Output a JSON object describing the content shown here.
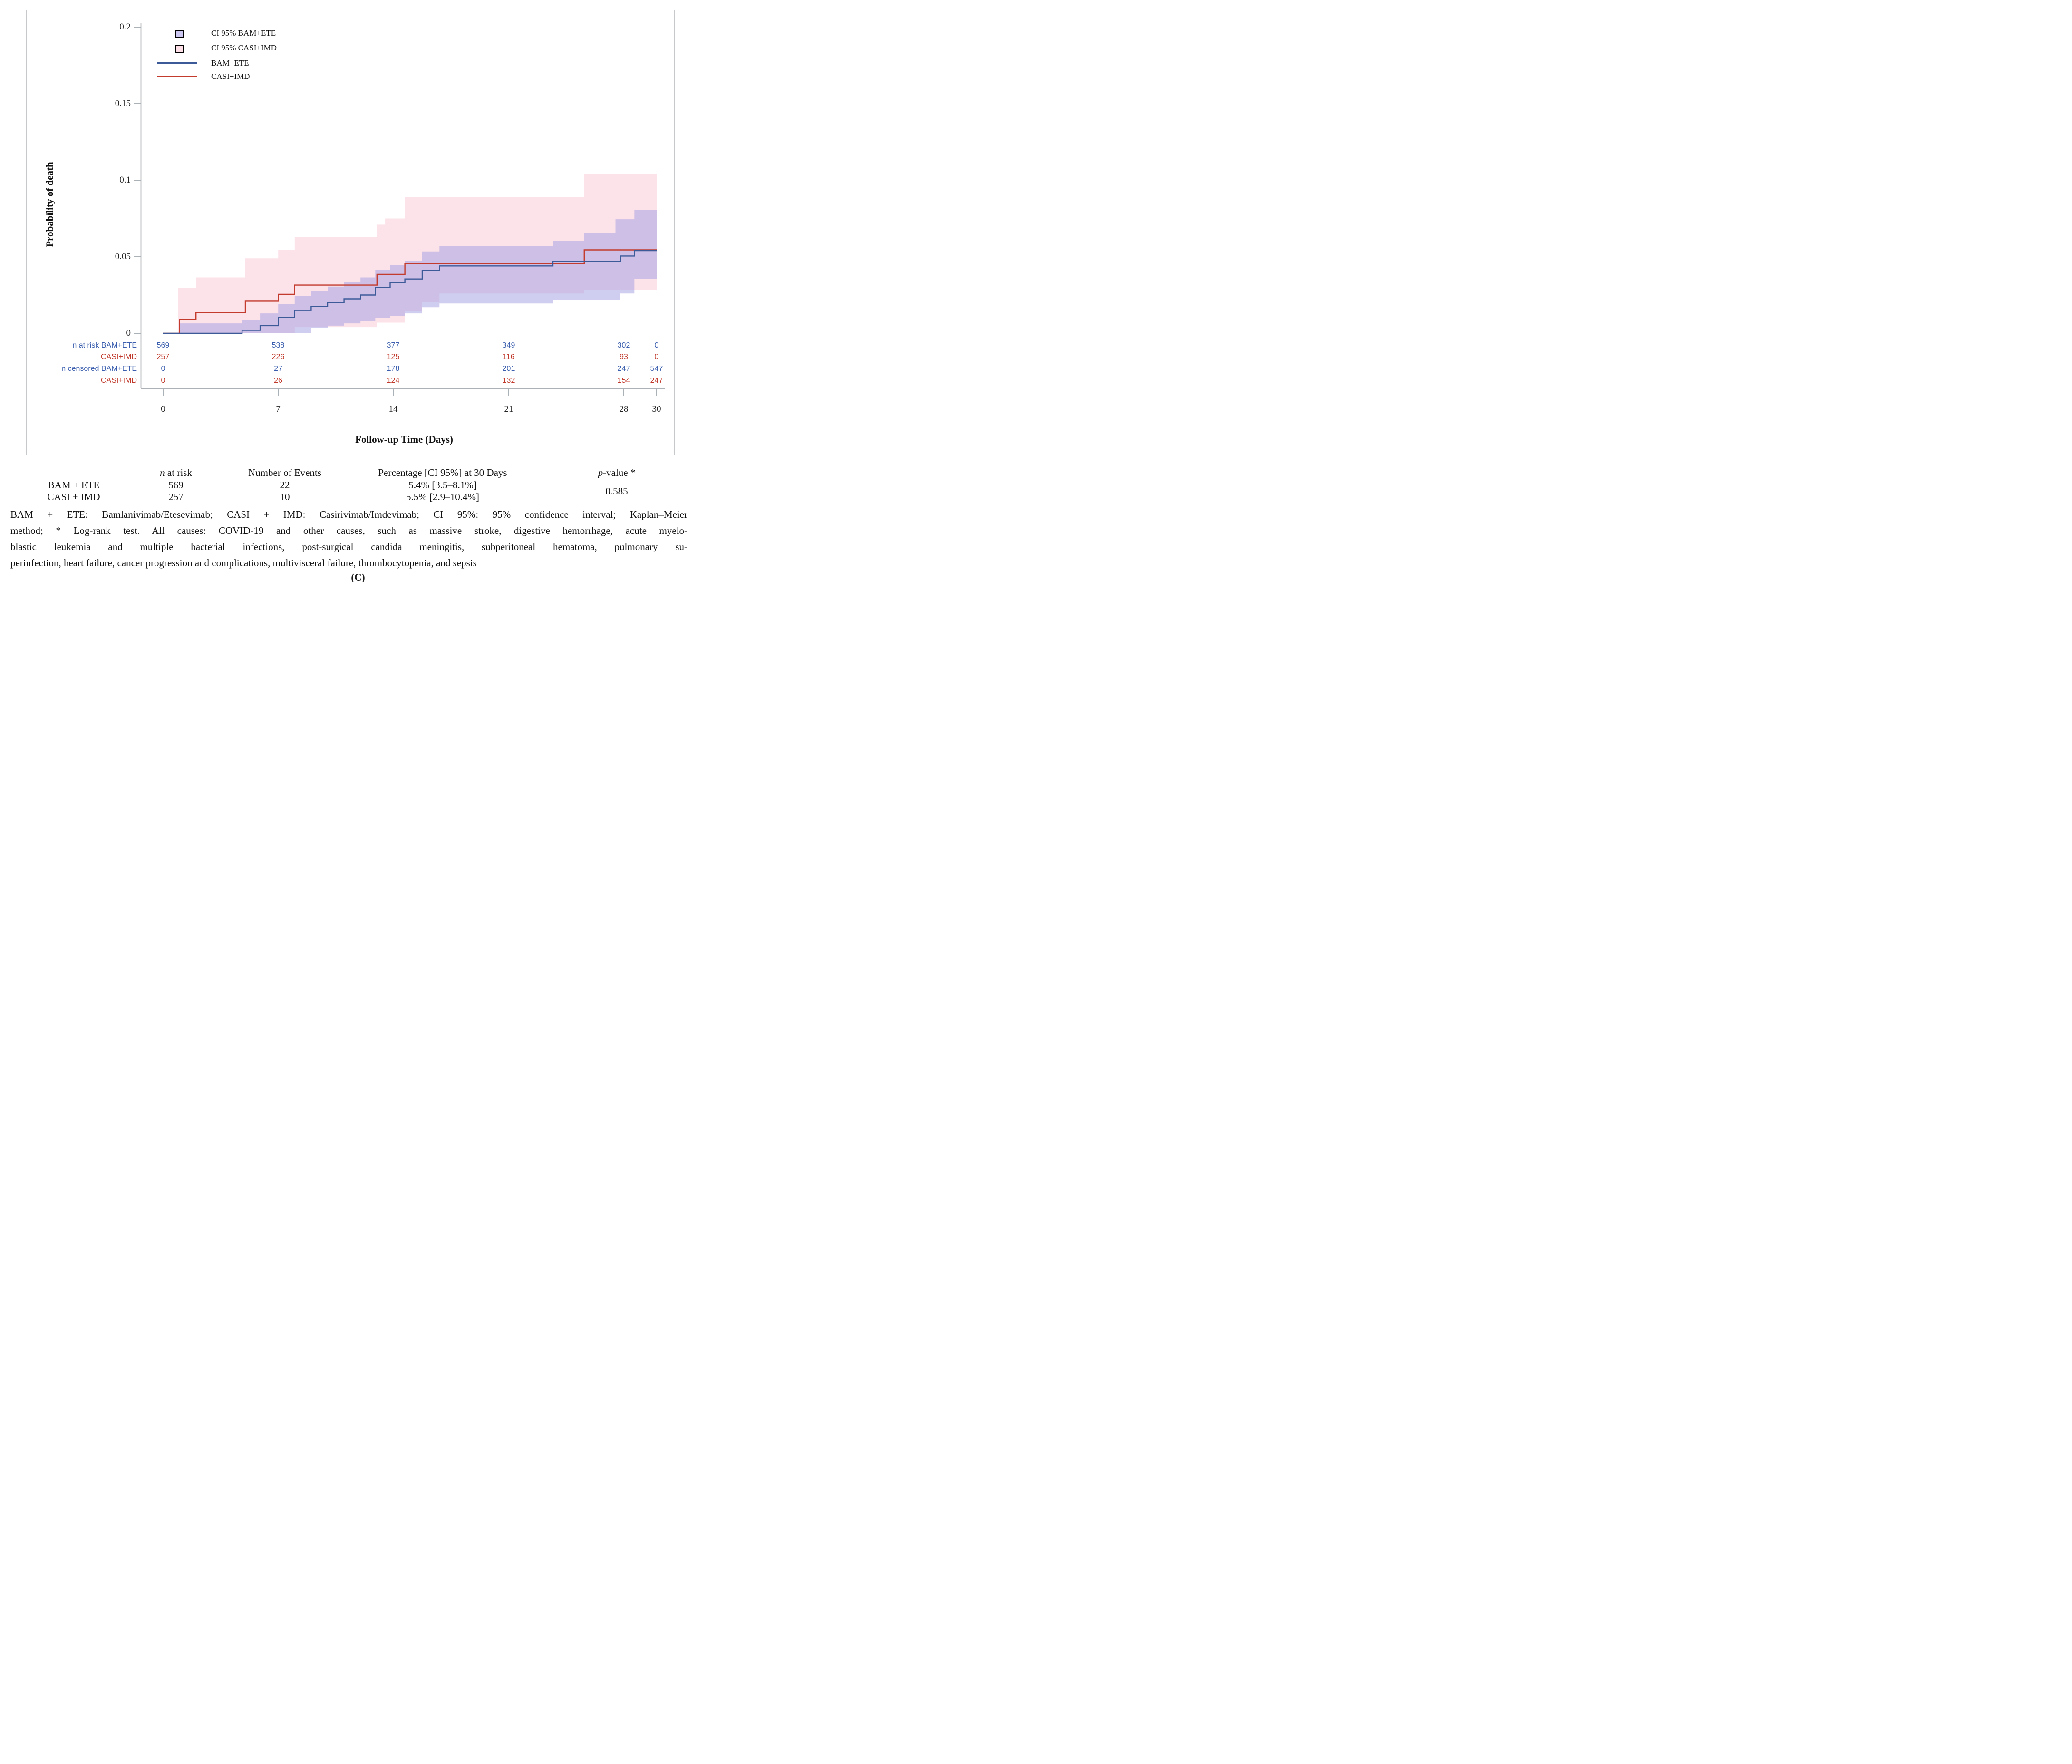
{
  "chart_data": {
    "type": "line",
    "subtype": "kaplan-meier-step-with-confidence-bands",
    "title": "",
    "xlabel": "Follow-up Time (Days)",
    "ylabel": "Probability of death",
    "xlim": [
      0,
      30
    ],
    "ylim": [
      0,
      0.2
    ],
    "grid": false,
    "legend_position": "top-left",
    "x_ticks": [
      {
        "v": 0,
        "label": "0"
      },
      {
        "v": 7,
        "label": "7"
      },
      {
        "v": 14,
        "label": "14"
      },
      {
        "v": 21,
        "label": "21"
      },
      {
        "v": 28,
        "label": "28"
      },
      {
        "v": 30,
        "label": "30"
      }
    ],
    "y_ticks": [
      {
        "v": 0.2,
        "label": "0.2"
      },
      {
        "v": 0.15,
        "label": "0.15"
      },
      {
        "v": 0.1,
        "label": "0.1"
      },
      {
        "v": 0.05,
        "label": "0.05"
      },
      {
        "v": 0,
        "label": "0"
      }
    ],
    "legend": [
      {
        "type": "box",
        "color": "#cbc7f0",
        "label": "CI 95% BAM+ETE"
      },
      {
        "type": "box",
        "color": "#fcdfe7",
        "label": "CI 95% CASI+IMD"
      },
      {
        "type": "line",
        "color": "#3d5a98",
        "label": "BAM+ETE"
      },
      {
        "type": "line",
        "color": "#c23b2c",
        "label": "CASI+IMD"
      }
    ],
    "series": [
      {
        "name": "CASI+IMD",
        "color": "#c23b2c",
        "points": [
          [
            0,
            0
          ],
          [
            1,
            0.009
          ],
          [
            2,
            0.0135
          ],
          [
            5,
            0.021
          ],
          [
            7,
            0.0255
          ],
          [
            8,
            0.0315
          ],
          [
            13,
            0.0385
          ],
          [
            14.7,
            0.0455
          ],
          [
            25.6,
            0.0545
          ],
          [
            30,
            0.0545
          ]
        ]
      },
      {
        "name": "BAM+ETE",
        "color": "#3d5a98",
        "points": [
          [
            0,
            0
          ],
          [
            4.8,
            0.002
          ],
          [
            5.9,
            0.005
          ],
          [
            7,
            0.0105
          ],
          [
            8,
            0.015
          ],
          [
            9,
            0.0175
          ],
          [
            10,
            0.02
          ],
          [
            11,
            0.0225
          ],
          [
            12,
            0.025
          ],
          [
            12.9,
            0.03
          ],
          [
            13.8,
            0.033
          ],
          [
            14.7,
            0.0355
          ],
          [
            15.75,
            0.041
          ],
          [
            16.8,
            0.044
          ],
          [
            23.7,
            0.047
          ],
          [
            27.8,
            0.0505
          ],
          [
            28.65,
            0.054
          ],
          [
            30,
            0.054
          ]
        ]
      }
    ],
    "bands": [
      {
        "name": "CI 95% CASI+IMD",
        "fill": "rgba(249,199,213,0.5)",
        "upper": [
          [
            0.9,
            0.0295
          ],
          [
            2,
            0.0365
          ],
          [
            5,
            0.049
          ],
          [
            7,
            0.0545
          ],
          [
            8,
            0.063
          ],
          [
            13,
            0.071
          ],
          [
            13.5,
            0.075
          ],
          [
            14.7,
            0.089
          ],
          [
            25.6,
            0.104
          ],
          [
            30,
            0.104
          ]
        ],
        "lower": [
          [
            0.9,
            0
          ],
          [
            7.5,
            0
          ],
          [
            8,
            0.004
          ],
          [
            13,
            0.007
          ],
          [
            14.7,
            0.0145
          ],
          [
            15.75,
            0.0205
          ],
          [
            16.8,
            0.026
          ],
          [
            25.6,
            0.0285
          ],
          [
            30,
            0.0285
          ]
        ]
      },
      {
        "name": "CI 95% BAM+ETE",
        "fill": "rgba(160,156,226,0.5)",
        "upper": [
          [
            1,
            0.0065
          ],
          [
            4.8,
            0.009
          ],
          [
            5.9,
            0.013
          ],
          [
            7,
            0.019
          ],
          [
            8,
            0.0245
          ],
          [
            9,
            0.0275
          ],
          [
            10,
            0.0305
          ],
          [
            11,
            0.0335
          ],
          [
            12,
            0.0365
          ],
          [
            12.9,
            0.0415
          ],
          [
            13.8,
            0.0445
          ],
          [
            14.7,
            0.0475
          ],
          [
            15.75,
            0.0535
          ],
          [
            16.8,
            0.057
          ],
          [
            23.7,
            0.0605
          ],
          [
            25.6,
            0.0655
          ],
          [
            27.5,
            0.0745
          ],
          [
            28.65,
            0.0805
          ],
          [
            30,
            0.0805
          ]
        ],
        "lower": [
          [
            1,
            0
          ],
          [
            8.5,
            0
          ],
          [
            9,
            0.0035
          ],
          [
            10,
            0.005
          ],
          [
            11,
            0.0065
          ],
          [
            12,
            0.008
          ],
          [
            12.9,
            0.01
          ],
          [
            13.8,
            0.0115
          ],
          [
            14.7,
            0.013
          ],
          [
            15.75,
            0.017
          ],
          [
            16.8,
            0.0195
          ],
          [
            23.7,
            0.022
          ],
          [
            27.8,
            0.026
          ],
          [
            28.65,
            0.0355
          ],
          [
            30,
            0.0355
          ]
        ]
      }
    ],
    "risk_table": {
      "columns_days": [
        0,
        7,
        14,
        21,
        28,
        30
      ],
      "rows": [
        {
          "label": "n at risk BAM+ETE",
          "color": "#3b5fae",
          "values": [
            "569",
            "538",
            "377",
            "349",
            "302",
            "0"
          ]
        },
        {
          "label": "CASI+IMD",
          "color": "#c0392b",
          "values": [
            "257",
            "226",
            "125",
            "116",
            "93",
            "0"
          ]
        },
        {
          "label": "n censored BAM+ETE",
          "color": "#3b5fae",
          "values": [
            "0",
            "27",
            "178",
            "201",
            "247",
            "547"
          ]
        },
        {
          "label": "CASI+IMD",
          "color": "#c0392b",
          "values": [
            "0",
            "26",
            "124",
            "132",
            "154",
            "247"
          ]
        }
      ]
    }
  },
  "summary_table": {
    "headers": {
      "col1": {
        "italic": "n",
        "rest": " at risk"
      },
      "col2": "Number of Events",
      "col3": "Percentage [CI 95%] at 30 Days",
      "col4": {
        "italic": "p",
        "rest": "-value *"
      }
    },
    "rows": [
      {
        "label": "BAM + ETE",
        "n_at_risk": "569",
        "events": "22",
        "percentage": "5.4% [3.5–8.1%]"
      },
      {
        "label": "CASI + IMD",
        "n_at_risk": "257",
        "events": "10",
        "percentage": "5.5% [2.9–10.4%]"
      }
    ],
    "p_value": "0.585"
  },
  "footnote_lines": [
    "BAM + ETE: Bamlanivimab/Etesevimab; CASI + IMD: Casirivimab/Imdevimab; CI 95%: 95% confidence interval; Kaplan–Meier",
    "method; * Log-rank test. All causes: COVID-19 and other causes, such as massive stroke, digestive hemorrhage, acute myelo-",
    "blastic leukemia and multiple bacterial infections, post-surgical candida meningitis, subperitoneal hematoma, pulmonary su-",
    "perinfection, heart failure, cancer progression and complications, multivisceral failure, thrombocytopenia, and sepsis"
  ],
  "caption": "(C)"
}
